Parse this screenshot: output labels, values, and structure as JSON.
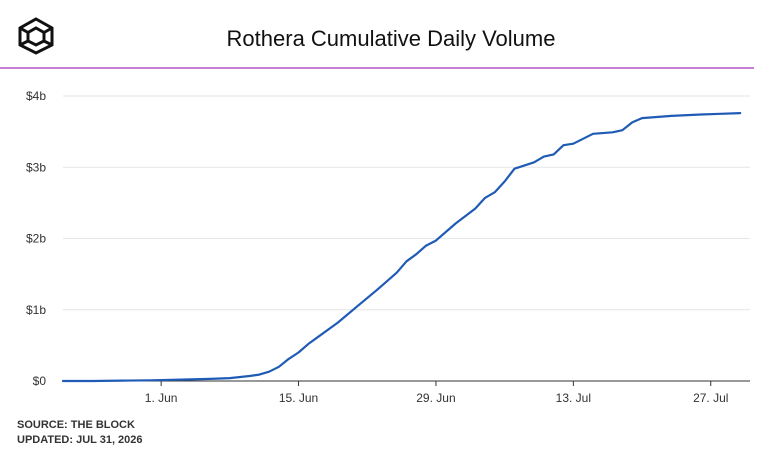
{
  "header": {
    "logo_icon": "the-block-cube-icon"
  },
  "colors": {
    "accent_rule": "#c77ed6",
    "line": "#1f5bb5",
    "grid": "#e6e6e6"
  },
  "footer": {
    "source": "SOURCE: THE BLOCK",
    "updated": "UPDATED: JUL 31, 2026"
  },
  "chart_data": {
    "type": "line",
    "title": "Rothera Cumulative Daily Volume",
    "xlabel": "",
    "ylabel": "",
    "x_ticks": [
      "1. Jun",
      "15. Jun",
      "29. Jun",
      "13. Jul",
      "27. Jul"
    ],
    "x_tick_dates": [
      "2026-06-01",
      "2026-06-15",
      "2026-06-29",
      "2026-07-13",
      "2026-07-27"
    ],
    "y_ticks": [
      "$0",
      "$1b",
      "$2b",
      "$3b",
      "$4b"
    ],
    "y_tick_values": [
      0,
      1,
      2,
      3,
      4
    ],
    "y_unit": "billion USD",
    "ylim": [
      0,
      4
    ],
    "xlim": [
      "2026-05-22",
      "2026-07-31"
    ],
    "grid": true,
    "series": [
      {
        "x": [
          "2026-05-22",
          "2026-05-25",
          "2026-05-28",
          "2026-05-31",
          "2026-06-03",
          "2026-06-06",
          "2026-06-08",
          "2026-06-10",
          "2026-06-11",
          "2026-06-12",
          "2026-06-13",
          "2026-06-14",
          "2026-06-15",
          "2026-06-16",
          "2026-06-17",
          "2026-06-19",
          "2026-06-21",
          "2026-06-23",
          "2026-06-25",
          "2026-06-26",
          "2026-06-27",
          "2026-06-28",
          "2026-06-29",
          "2026-07-01",
          "2026-07-03",
          "2026-07-04",
          "2026-07-05",
          "2026-07-06",
          "2026-07-07",
          "2026-07-09",
          "2026-07-10",
          "2026-07-11",
          "2026-07-12",
          "2026-07-13",
          "2026-07-15",
          "2026-07-17",
          "2026-07-18",
          "2026-07-19",
          "2026-07-20",
          "2026-07-21",
          "2026-07-23",
          "2026-07-26",
          "2026-07-28",
          "2026-07-30"
        ],
        "values": [
          0.0,
          0.0,
          0.005,
          0.01,
          0.02,
          0.03,
          0.04,
          0.07,
          0.09,
          0.13,
          0.2,
          0.31,
          0.4,
          0.52,
          0.62,
          0.82,
          1.05,
          1.28,
          1.52,
          1.68,
          1.78,
          1.9,
          1.97,
          2.21,
          2.42,
          2.57,
          2.65,
          2.8,
          2.98,
          3.07,
          3.15,
          3.18,
          3.31,
          3.33,
          3.47,
          3.49,
          3.52,
          3.63,
          3.69,
          3.7,
          3.72,
          3.74,
          3.75,
          3.76
        ]
      }
    ]
  }
}
